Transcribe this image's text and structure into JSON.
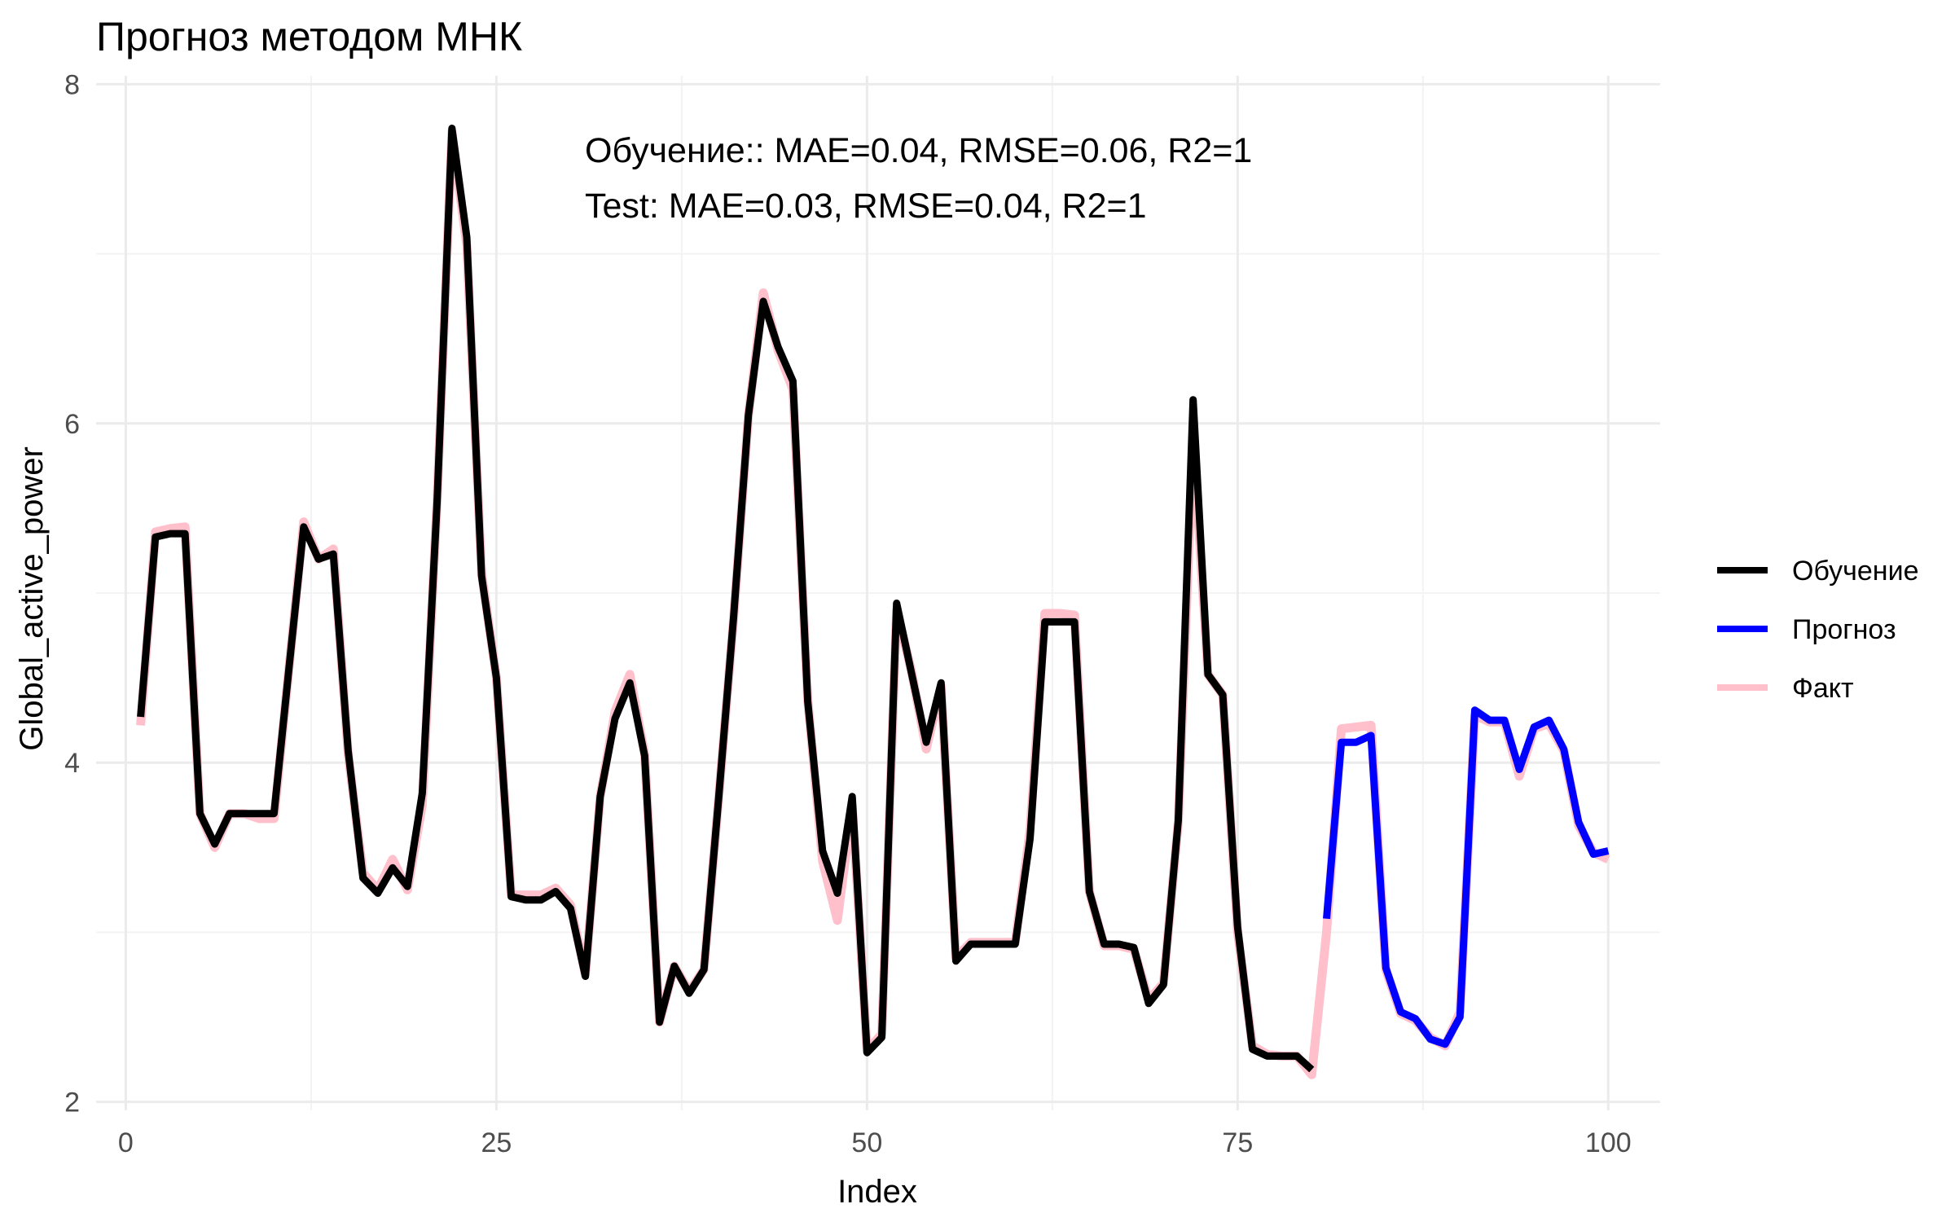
{
  "chart_data": {
    "type": "line",
    "title": "Прогноз методом МНК",
    "xlabel": "Index",
    "ylabel": "Global_active_power",
    "xlim": [
      -2,
      103.5
    ],
    "ylim": [
      1.95,
      8.05
    ],
    "x_ticks": [
      0,
      25,
      50,
      75,
      100
    ],
    "y_ticks": [
      2,
      4,
      6,
      8
    ],
    "x_tick_labels": [
      "0",
      "25",
      "50",
      "75",
      "100"
    ],
    "y_tick_labels": [
      "2",
      "4",
      "6",
      "8"
    ],
    "grid": true,
    "legend_position": "right",
    "annotations": [
      "Обучение:: MAE=0.04, RMSE=0.06, R2=1",
      "Test: MAE=0.03, RMSE=0.04, R2=1"
    ],
    "series": [
      {
        "name": "Факт",
        "color": "#ffc0cb",
        "x": [
          1,
          2,
          3,
          4,
          5,
          6,
          7,
          8,
          9,
          10,
          11,
          12,
          13,
          14,
          15,
          16,
          17,
          18,
          19,
          20,
          21,
          22,
          23,
          24,
          25,
          26,
          27,
          28,
          29,
          30,
          31,
          32,
          33,
          34,
          35,
          36,
          37,
          38,
          39,
          40,
          41,
          42,
          43,
          44,
          45,
          46,
          47,
          48,
          49,
          50,
          51,
          52,
          53,
          54,
          55,
          56,
          57,
          58,
          59,
          60,
          61,
          62,
          63,
          64,
          65,
          66,
          67,
          68,
          69,
          70,
          71,
          72,
          73,
          74,
          75,
          76,
          77,
          78,
          79,
          80,
          81,
          82,
          83,
          84,
          85,
          86,
          87,
          88,
          89,
          90,
          91,
          92,
          93,
          94,
          95,
          96,
          97,
          98,
          99,
          100
        ],
        "values": [
          4.22,
          5.36,
          5.38,
          5.39,
          3.7,
          3.5,
          3.7,
          3.7,
          3.67,
          3.67,
          4.55,
          5.42,
          5.2,
          5.26,
          4.05,
          3.35,
          3.25,
          3.43,
          3.25,
          3.75,
          5.55,
          7.72,
          7.05,
          5.12,
          4.5,
          3.22,
          3.22,
          3.22,
          3.26,
          3.16,
          2.75,
          3.8,
          4.3,
          4.52,
          4.05,
          2.47,
          2.8,
          2.65,
          2.78,
          3.8,
          4.85,
          6.05,
          6.77,
          6.43,
          6.2,
          4.37,
          3.42,
          3.07,
          3.75,
          2.3,
          2.4,
          4.9,
          4.54,
          4.08,
          4.45,
          2.85,
          2.94,
          2.94,
          2.94,
          2.94,
          3.6,
          4.88,
          4.88,
          4.87,
          3.24,
          2.92,
          2.92,
          2.9,
          2.6,
          2.7,
          3.65,
          5.93,
          4.52,
          4.4,
          3.0,
          2.33,
          2.28,
          2.27,
          2.27,
          2.16,
          3.0,
          4.2,
          4.21,
          4.22,
          2.78,
          2.52,
          2.48,
          2.38,
          2.33,
          2.53,
          4.28,
          4.24,
          4.24,
          3.92,
          4.2,
          4.23,
          4.07,
          3.63,
          3.47,
          3.43
        ]
      },
      {
        "name": "Обучение",
        "color": "#000000",
        "x": [
          1,
          2,
          3,
          4,
          5,
          6,
          7,
          8,
          9,
          10,
          11,
          12,
          13,
          14,
          15,
          16,
          17,
          18,
          19,
          20,
          21,
          22,
          23,
          24,
          25,
          26,
          27,
          28,
          29,
          30,
          31,
          32,
          33,
          34,
          35,
          36,
          37,
          38,
          39,
          40,
          41,
          42,
          43,
          44,
          45,
          46,
          47,
          48,
          49,
          50,
          51,
          52,
          53,
          54,
          55,
          56,
          57,
          58,
          59,
          60,
          61,
          62,
          63,
          64,
          65,
          66,
          67,
          68,
          69,
          70,
          71,
          72,
          73,
          74,
          75,
          76,
          77,
          78,
          79,
          80
        ],
        "values": [
          4.27,
          5.33,
          5.35,
          5.35,
          3.7,
          3.52,
          3.7,
          3.7,
          3.7,
          3.7,
          4.55,
          5.39,
          5.2,
          5.23,
          4.07,
          3.32,
          3.23,
          3.38,
          3.27,
          3.82,
          5.54,
          7.74,
          7.1,
          5.1,
          4.5,
          3.21,
          3.19,
          3.19,
          3.24,
          3.14,
          2.74,
          3.8,
          4.26,
          4.47,
          4.04,
          2.47,
          2.8,
          2.64,
          2.78,
          3.8,
          4.86,
          6.05,
          6.72,
          6.45,
          6.25,
          4.36,
          3.48,
          3.23,
          3.8,
          2.29,
          2.38,
          4.94,
          4.53,
          4.12,
          4.47,
          2.83,
          2.93,
          2.93,
          2.93,
          2.93,
          3.55,
          4.83,
          4.83,
          4.83,
          3.24,
          2.93,
          2.93,
          2.91,
          2.58,
          2.69,
          3.66,
          6.14,
          4.52,
          4.4,
          3.03,
          2.31,
          2.27,
          2.27,
          2.27,
          2.19
        ]
      },
      {
        "name": "Прогноз",
        "color": "#0000ff",
        "x": [
          81,
          82,
          83,
          84,
          85,
          86,
          87,
          88,
          89,
          90,
          91,
          92,
          93,
          94,
          95,
          96,
          97,
          98,
          99,
          100
        ],
        "values": [
          3.08,
          4.12,
          4.12,
          4.16,
          2.79,
          2.53,
          2.49,
          2.37,
          2.34,
          2.5,
          4.31,
          4.25,
          4.25,
          3.96,
          4.21,
          4.25,
          4.08,
          3.65,
          3.46,
          3.48
        ]
      }
    ]
  },
  "legend": {
    "items": [
      {
        "label": "Обучение",
        "color": "#000000"
      },
      {
        "label": "Прогноз",
        "color": "#0000ff"
      },
      {
        "label": "Факт",
        "color": "#ffc0cb"
      }
    ]
  }
}
